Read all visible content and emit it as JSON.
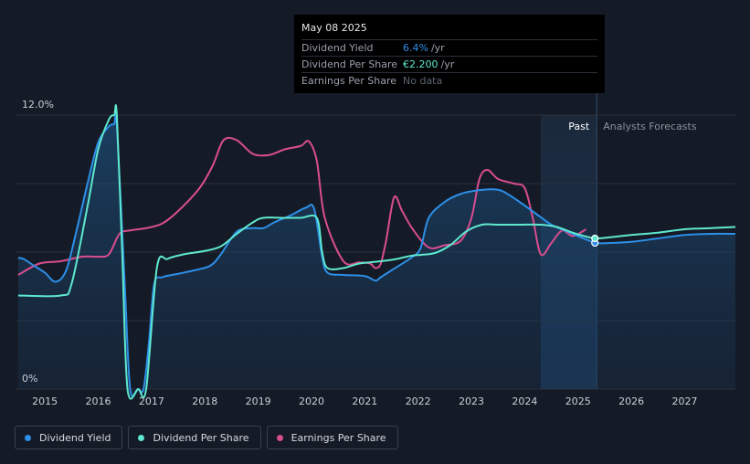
{
  "chart_data": {
    "type": "line",
    "title": "",
    "xlabel": "",
    "ylabel": "",
    "ylim": [
      0,
      12
    ],
    "y_tick_labels": [
      "0%",
      "12.0%"
    ],
    "x_tick_labels": [
      "2015",
      "2016",
      "2017",
      "2018",
      "2019",
      "2020",
      "2021",
      "2022",
      "2023",
      "2024",
      "2025",
      "2026",
      "2027"
    ],
    "xlim": [
      2014.45,
      2027.95
    ],
    "past_label": "Past",
    "forecast_label": "Analysts Forecasts",
    "past_region_start": 2024.3,
    "forecast_start": 2025.35,
    "series": [
      {
        "name": "Dividend Yield",
        "color": "#2d8fe8",
        "fill": true,
        "x": [
          2014.5,
          2014.6,
          2014.8,
          2015.0,
          2015.2,
          2015.4,
          2015.6,
          2015.8,
          2016.0,
          2016.2,
          2016.3,
          2016.35,
          2016.5,
          2016.6,
          2016.75,
          2016.85,
          2016.95,
          2017.05,
          2017.2,
          2017.5,
          2017.8,
          2018.1,
          2018.3,
          2018.6,
          2018.9,
          2019.1,
          2019.3,
          2019.6,
          2019.9,
          2020.05,
          2020.2,
          2020.3,
          2020.6,
          2021.0,
          2021.2,
          2021.3,
          2021.5,
          2021.9,
          2022.05,
          2022.2,
          2022.5,
          2022.8,
          2023.1,
          2023.4,
          2023.6,
          2023.9,
          2024.2,
          2024.5,
          2024.8,
          2025.1,
          2025.35,
          2025.6,
          2026.0,
          2026.5,
          2027.0,
          2027.5,
          2027.95
        ],
        "values": [
          5.75,
          5.7,
          5.4,
          5.1,
          4.7,
          5.2,
          7.0,
          9.0,
          10.8,
          11.5,
          11.6,
          11.6,
          4.5,
          0.0,
          0.0,
          0.0,
          2.0,
          4.6,
          4.9,
          5.05,
          5.2,
          5.4,
          5.9,
          6.9,
          7.05,
          7.05,
          7.3,
          7.6,
          7.95,
          7.9,
          5.8,
          5.1,
          5.0,
          4.95,
          4.75,
          4.9,
          5.2,
          5.8,
          6.2,
          7.5,
          8.2,
          8.55,
          8.7,
          8.75,
          8.65,
          8.2,
          7.7,
          7.2,
          6.9,
          6.6,
          6.4,
          6.4,
          6.45,
          6.6,
          6.75,
          6.8,
          6.8
        ],
        "marker_value": 6.4
      },
      {
        "name": "Dividend Per Share",
        "color": "#5ee8cf",
        "fill": false,
        "x": [
          2014.5,
          2015.3,
          2015.5,
          2015.8,
          2016.0,
          2016.2,
          2016.3,
          2016.35,
          2016.45,
          2016.55,
          2016.75,
          2016.9,
          2017.1,
          2017.3,
          2017.6,
          2018.0,
          2018.3,
          2018.6,
          2018.9,
          2019.1,
          2019.5,
          2019.8,
          2020.1,
          2020.2,
          2020.3,
          2020.6,
          2020.9,
          2021.3,
          2021.6,
          2021.9,
          2022.3,
          2022.6,
          2022.9,
          2023.2,
          2023.5,
          2023.9,
          2024.3,
          2024.6,
          2024.9,
          2025.2,
          2025.35,
          2025.6,
          2026.0,
          2026.5,
          2027.0,
          2027.5,
          2027.95
        ],
        "values": [
          4.1,
          4.1,
          4.6,
          8.0,
          10.5,
          11.8,
          12.0,
          12.0,
          6.0,
          0.0,
          0.0,
          0.0,
          5.3,
          5.7,
          5.9,
          6.05,
          6.25,
          6.8,
          7.3,
          7.5,
          7.5,
          7.5,
          7.5,
          6.0,
          5.3,
          5.3,
          5.5,
          5.6,
          5.7,
          5.85,
          5.95,
          6.3,
          6.9,
          7.2,
          7.2,
          7.2,
          7.2,
          7.1,
          6.85,
          6.65,
          6.6,
          6.65,
          6.75,
          6.85,
          7.0,
          7.05,
          7.1
        ],
        "marker_value": 6.6
      },
      {
        "name": "Earnings Per Share",
        "color": "#d94d8f",
        "fill": false,
        "x": [
          2014.5,
          2014.9,
          2015.3,
          2015.7,
          2016.0,
          2016.2,
          2016.4,
          2016.6,
          2016.9,
          2017.2,
          2017.5,
          2017.9,
          2018.15,
          2018.35,
          2018.6,
          2018.9,
          2019.2,
          2019.5,
          2019.8,
          2019.95,
          2020.1,
          2020.25,
          2020.6,
          2020.9,
          2021.1,
          2021.2,
          2021.3,
          2021.4,
          2021.55,
          2021.7,
          2021.9,
          2022.2,
          2022.5,
          2022.8,
          2023.0,
          2023.15,
          2023.3,
          2023.5,
          2023.8,
          2024.0,
          2024.15,
          2024.3,
          2024.5,
          2024.7,
          2024.9,
          2025.15
        ],
        "values": [
          5.0,
          5.5,
          5.6,
          5.8,
          5.8,
          5.9,
          6.8,
          6.95,
          7.05,
          7.25,
          7.8,
          8.8,
          9.8,
          10.9,
          10.9,
          10.3,
          10.25,
          10.5,
          10.65,
          10.85,
          10.0,
          7.5,
          5.6,
          5.55,
          5.5,
          5.3,
          5.5,
          6.5,
          8.4,
          7.8,
          7.0,
          6.2,
          6.3,
          6.5,
          7.5,
          9.2,
          9.6,
          9.2,
          9.0,
          8.8,
          7.5,
          5.9,
          6.4,
          6.95,
          6.7,
          7.0
        ]
      }
    ]
  },
  "tooltip": {
    "date": "May 08 2025",
    "rows": [
      {
        "label": "Dividend Yield",
        "value": "6.4%",
        "unit": "/yr",
        "color": "#2d8fe8"
      },
      {
        "label": "Dividend Per Share",
        "value": "€2.200",
        "unit": "/yr",
        "color": "#5ee8cf"
      },
      {
        "label": "Earnings Per Share",
        "value": "No data",
        "unit": "",
        "color": "#5c636e"
      }
    ]
  },
  "legend": [
    {
      "label": "Dividend Yield",
      "color": "#2d8fe8"
    },
    {
      "label": "Dividend Per Share",
      "color": "#5ee8cf"
    },
    {
      "label": "Earnings Per Share",
      "color": "#d94d8f"
    }
  ]
}
